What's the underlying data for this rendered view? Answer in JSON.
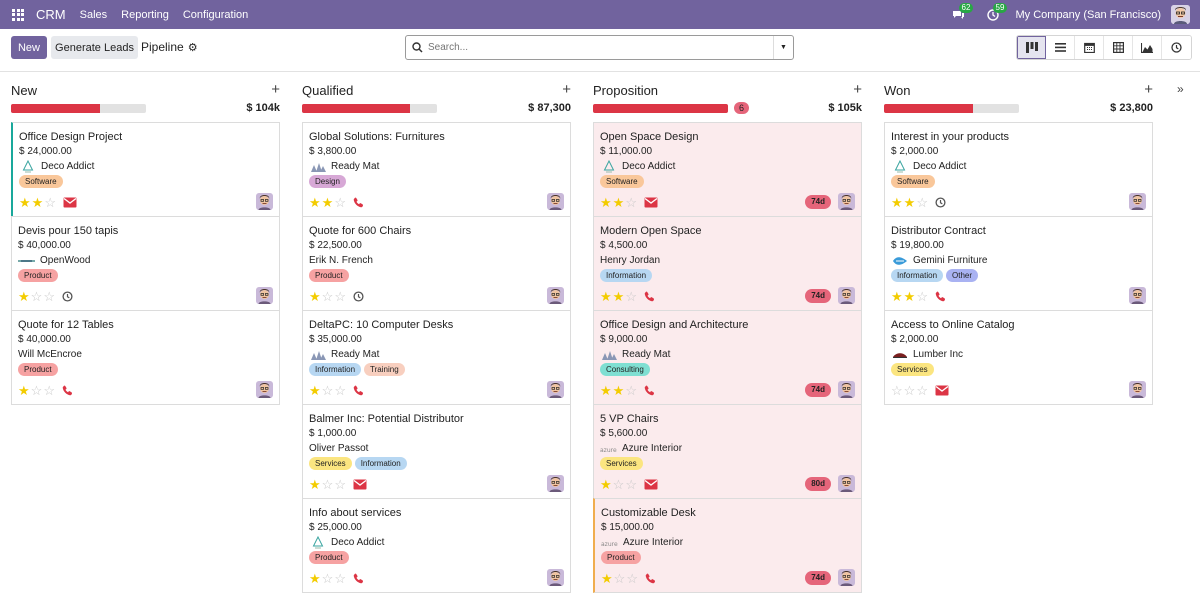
{
  "navbar": {
    "app": "CRM",
    "menus": [
      "Sales",
      "Reporting",
      "Configuration"
    ],
    "messages_count": "62",
    "activities_count": "59",
    "company": "My Company (San Francisco)"
  },
  "control": {
    "new_label": "New",
    "generate_label": "Generate Leads",
    "breadcrumb": "Pipeline",
    "search_placeholder": "Search..."
  },
  "colors": {
    "brand": "#71639e",
    "progress_red": "#dc3545",
    "star": "#f3cc00",
    "overdue_badge": "#e5657a"
  },
  "columns": [
    {
      "title": "New",
      "progress": 0.66,
      "count": "",
      "total": "$ 104k",
      "cards": [
        {
          "title": "Office Design Project",
          "amount": "$ 24,000.00",
          "partner": "Deco Addict",
          "logo": "deco",
          "tags": [
            {
              "label": "Software",
              "color": "#f9c79a"
            }
          ],
          "stars": 2,
          "activity": "mail",
          "days": "",
          "accent": "teal",
          "highlight": false
        },
        {
          "title": "Devis pour 150 tapis",
          "amount": "$ 40,000.00",
          "partner": "OpenWood",
          "logo": "openwood",
          "tags": [
            {
              "label": "Product",
              "color": "#f6a2a2"
            }
          ],
          "stars": 1,
          "activity": "clock",
          "days": "",
          "accent": "",
          "highlight": false
        },
        {
          "title": "Quote for 12 Tables",
          "amount": "$ 40,000.00",
          "partner": "Will McEncroe",
          "logo": "",
          "tags": [
            {
              "label": "Product",
              "color": "#f6a2a2"
            }
          ],
          "stars": 1,
          "activity": "phone",
          "days": "",
          "accent": "",
          "highlight": false
        }
      ]
    },
    {
      "title": "Qualified",
      "progress": 0.8,
      "count": "",
      "total": "$ 87,300",
      "cards": [
        {
          "title": "Global Solutions: Furnitures",
          "amount": "$ 3,800.00",
          "partner": "Ready Mat",
          "logo": "readymat",
          "tags": [
            {
              "label": "Design",
              "color": "#d7a8d6"
            }
          ],
          "stars": 2,
          "activity": "phone",
          "days": "",
          "accent": "",
          "highlight": false
        },
        {
          "title": "Quote for 600 Chairs",
          "amount": "$ 22,500.00",
          "partner": "Erik N. French",
          "logo": "",
          "tags": [
            {
              "label": "Product",
              "color": "#f6a2a2"
            }
          ],
          "stars": 1,
          "activity": "clock",
          "days": "",
          "accent": "",
          "highlight": false
        },
        {
          "title": "DeltaPC: 10 Computer Desks",
          "amount": "$ 35,000.00",
          "partner": "Ready Mat",
          "logo": "readymat",
          "tags": [
            {
              "label": "Information",
              "color": "#b7d7f2"
            },
            {
              "label": "Training",
              "color": "#f8cfbf"
            }
          ],
          "stars": 1,
          "activity": "phone",
          "days": "",
          "accent": "",
          "highlight": false
        },
        {
          "title": "Balmer Inc: Potential Distributor",
          "amount": "$ 1,000.00",
          "partner": "Oliver Passot",
          "logo": "",
          "tags": [
            {
              "label": "Services",
              "color": "#fbe580"
            },
            {
              "label": "Information",
              "color": "#b7d7f2"
            }
          ],
          "stars": 1,
          "activity": "mail",
          "days": "",
          "accent": "",
          "highlight": false
        },
        {
          "title": "Info about services",
          "amount": "$ 25,000.00",
          "partner": "Deco Addict",
          "logo": "deco",
          "tags": [
            {
              "label": "Product",
              "color": "#f6a2a2"
            }
          ],
          "stars": 1,
          "activity": "phone",
          "days": "",
          "accent": "",
          "highlight": false
        }
      ]
    },
    {
      "title": "Proposition",
      "progress": 1.0,
      "count": "6",
      "total": "$ 105k",
      "cards": [
        {
          "title": "Open Space Design",
          "amount": "$ 11,000.00",
          "partner": "Deco Addict",
          "logo": "deco",
          "tags": [
            {
              "label": "Software",
              "color": "#f9c79a"
            }
          ],
          "stars": 2,
          "activity": "mail",
          "days": "74d",
          "accent": "",
          "highlight": true
        },
        {
          "title": "Modern Open Space",
          "amount": "$ 4,500.00",
          "partner": "Henry Jordan",
          "logo": "",
          "tags": [
            {
              "label": "Information",
              "color": "#b7d7f2"
            }
          ],
          "stars": 2,
          "activity": "phone",
          "days": "74d",
          "accent": "",
          "highlight": true
        },
        {
          "title": "Office Design and Architecture",
          "amount": "$ 9,000.00",
          "partner": "Ready Mat",
          "logo": "readymat",
          "tags": [
            {
              "label": "Consulting",
              "color": "#7fdfd2"
            }
          ],
          "stars": 2,
          "activity": "phone",
          "days": "74d",
          "accent": "",
          "highlight": true
        },
        {
          "title": "5 VP Chairs",
          "amount": "$ 5,600.00",
          "partner": "Azure Interior",
          "logo": "azure",
          "tags": [
            {
              "label": "Services",
              "color": "#fbe580"
            }
          ],
          "stars": 1,
          "activity": "mail",
          "days": "80d",
          "accent": "",
          "highlight": true
        },
        {
          "title": "Customizable Desk",
          "amount": "$ 15,000.00",
          "partner": "Azure Interior",
          "logo": "azure",
          "tags": [
            {
              "label": "Product",
              "color": "#f6a2a2"
            }
          ],
          "stars": 1,
          "activity": "phone",
          "days": "74d",
          "accent": "amber",
          "highlight": true
        }
      ]
    },
    {
      "title": "Won",
      "progress": 0.66,
      "count": "",
      "total": "$ 23,800",
      "cards": [
        {
          "title": "Interest in your products",
          "amount": "$ 2,000.00",
          "partner": "Deco Addict",
          "logo": "deco",
          "tags": [
            {
              "label": "Software",
              "color": "#f9c79a"
            }
          ],
          "stars": 2,
          "activity": "clock",
          "days": "",
          "accent": "",
          "highlight": false
        },
        {
          "title": "Distributor Contract",
          "amount": "$ 19,800.00",
          "partner": "Gemini Furniture",
          "logo": "gemini",
          "tags": [
            {
              "label": "Information",
              "color": "#b7d7f2"
            },
            {
              "label": "Other",
              "color": "#a9b2f2"
            }
          ],
          "stars": 2,
          "activity": "phone",
          "days": "",
          "accent": "",
          "highlight": false
        },
        {
          "title": "Access to Online Catalog",
          "amount": "$ 2,000.00",
          "partner": "Lumber Inc",
          "logo": "lumber",
          "tags": [
            {
              "label": "Services",
              "color": "#fbe580"
            }
          ],
          "stars": 0,
          "activity": "mail",
          "days": "",
          "accent": "",
          "highlight": false
        }
      ]
    }
  ]
}
